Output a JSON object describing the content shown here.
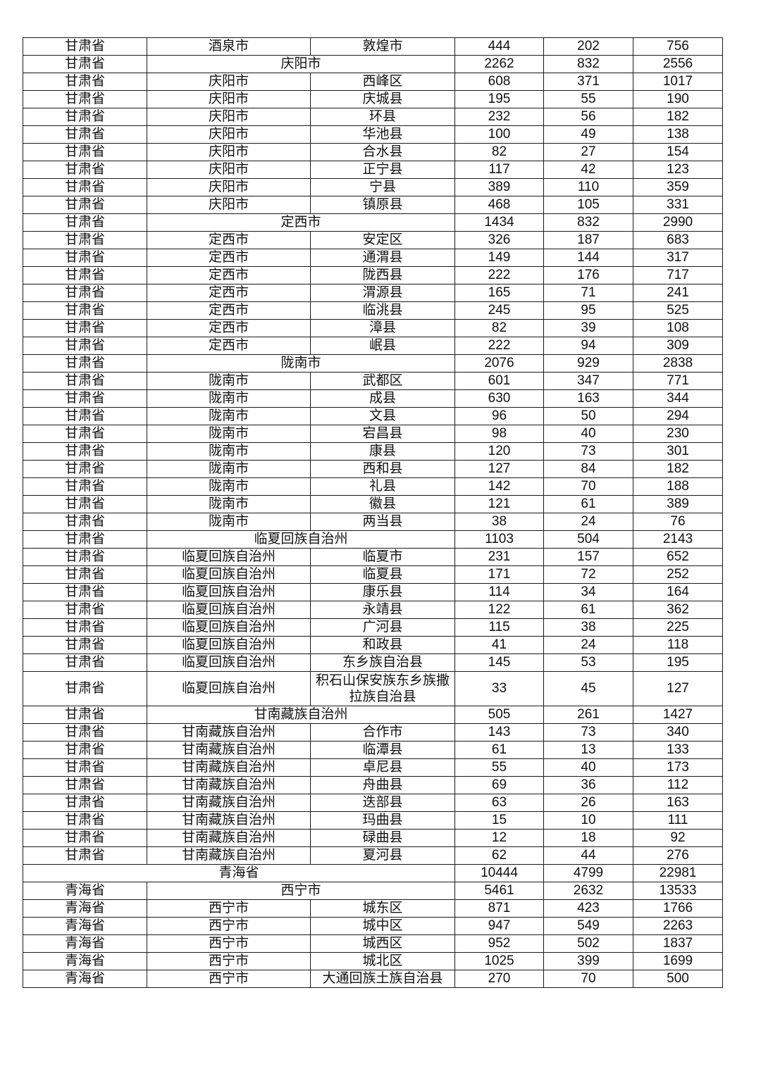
{
  "table": {
    "rows": [
      {
        "type": "county",
        "province": "甘肃省",
        "city": "酒泉市",
        "county": "敦煌市",
        "a": "444",
        "b": "202",
        "c": "756"
      },
      {
        "type": "city",
        "province": "甘肃省",
        "city": "庆阳市",
        "a": "2262",
        "b": "832",
        "c": "2556"
      },
      {
        "type": "county",
        "province": "甘肃省",
        "city": "庆阳市",
        "county": "西峰区",
        "a": "608",
        "b": "371",
        "c": "1017"
      },
      {
        "type": "county",
        "province": "甘肃省",
        "city": "庆阳市",
        "county": "庆城县",
        "a": "195",
        "b": "55",
        "c": "190"
      },
      {
        "type": "county",
        "province": "甘肃省",
        "city": "庆阳市",
        "county": "环县",
        "a": "232",
        "b": "56",
        "c": "182"
      },
      {
        "type": "county",
        "province": "甘肃省",
        "city": "庆阳市",
        "county": "华池县",
        "a": "100",
        "b": "49",
        "c": "138"
      },
      {
        "type": "county",
        "province": "甘肃省",
        "city": "庆阳市",
        "county": "合水县",
        "a": "82",
        "b": "27",
        "c": "154"
      },
      {
        "type": "county",
        "province": "甘肃省",
        "city": "庆阳市",
        "county": "正宁县",
        "a": "117",
        "b": "42",
        "c": "123"
      },
      {
        "type": "county",
        "province": "甘肃省",
        "city": "庆阳市",
        "county": "宁县",
        "a": "389",
        "b": "110",
        "c": "359"
      },
      {
        "type": "county",
        "province": "甘肃省",
        "city": "庆阳市",
        "county": "镇原县",
        "a": "468",
        "b": "105",
        "c": "331"
      },
      {
        "type": "city",
        "province": "甘肃省",
        "city": "定西市",
        "a": "1434",
        "b": "832",
        "c": "2990"
      },
      {
        "type": "county",
        "province": "甘肃省",
        "city": "定西市",
        "county": "安定区",
        "a": "326",
        "b": "187",
        "c": "683"
      },
      {
        "type": "county",
        "province": "甘肃省",
        "city": "定西市",
        "county": "通渭县",
        "a": "149",
        "b": "144",
        "c": "317"
      },
      {
        "type": "county",
        "province": "甘肃省",
        "city": "定西市",
        "county": "陇西县",
        "a": "222",
        "b": "176",
        "c": "717"
      },
      {
        "type": "county",
        "province": "甘肃省",
        "city": "定西市",
        "county": "渭源县",
        "a": "165",
        "b": "71",
        "c": "241"
      },
      {
        "type": "county",
        "province": "甘肃省",
        "city": "定西市",
        "county": "临洮县",
        "a": "245",
        "b": "95",
        "c": "525"
      },
      {
        "type": "county",
        "province": "甘肃省",
        "city": "定西市",
        "county": "漳县",
        "a": "82",
        "b": "39",
        "c": "108"
      },
      {
        "type": "county",
        "province": "甘肃省",
        "city": "定西市",
        "county": "岷县",
        "a": "222",
        "b": "94",
        "c": "309"
      },
      {
        "type": "city",
        "province": "甘肃省",
        "city": "陇南市",
        "a": "2076",
        "b": "929",
        "c": "2838"
      },
      {
        "type": "county",
        "province": "甘肃省",
        "city": "陇南市",
        "county": "武都区",
        "a": "601",
        "b": "347",
        "c": "771"
      },
      {
        "type": "county",
        "province": "甘肃省",
        "city": "陇南市",
        "county": "成县",
        "a": "630",
        "b": "163",
        "c": "344"
      },
      {
        "type": "county",
        "province": "甘肃省",
        "city": "陇南市",
        "county": "文县",
        "a": "96",
        "b": "50",
        "c": "294"
      },
      {
        "type": "county",
        "province": "甘肃省",
        "city": "陇南市",
        "county": "宕昌县",
        "a": "98",
        "b": "40",
        "c": "230"
      },
      {
        "type": "county",
        "province": "甘肃省",
        "city": "陇南市",
        "county": "康县",
        "a": "120",
        "b": "73",
        "c": "301"
      },
      {
        "type": "county",
        "province": "甘肃省",
        "city": "陇南市",
        "county": "西和县",
        "a": "127",
        "b": "84",
        "c": "182"
      },
      {
        "type": "county",
        "province": "甘肃省",
        "city": "陇南市",
        "county": "礼县",
        "a": "142",
        "b": "70",
        "c": "188"
      },
      {
        "type": "county",
        "province": "甘肃省",
        "city": "陇南市",
        "county": "徽县",
        "a": "121",
        "b": "61",
        "c": "389"
      },
      {
        "type": "county",
        "province": "甘肃省",
        "city": "陇南市",
        "county": "两当县",
        "a": "38",
        "b": "24",
        "c": "76"
      },
      {
        "type": "city",
        "province": "甘肃省",
        "city": "临夏回族自治州",
        "a": "1103",
        "b": "504",
        "c": "2143"
      },
      {
        "type": "county",
        "province": "甘肃省",
        "city": "临夏回族自治州",
        "county": "临夏市",
        "a": "231",
        "b": "157",
        "c": "652"
      },
      {
        "type": "county",
        "province": "甘肃省",
        "city": "临夏回族自治州",
        "county": "临夏县",
        "a": "171",
        "b": "72",
        "c": "252"
      },
      {
        "type": "county",
        "province": "甘肃省",
        "city": "临夏回族自治州",
        "county": "康乐县",
        "a": "114",
        "b": "34",
        "c": "164"
      },
      {
        "type": "county",
        "province": "甘肃省",
        "city": "临夏回族自治州",
        "county": "永靖县",
        "a": "122",
        "b": "61",
        "c": "362"
      },
      {
        "type": "county",
        "province": "甘肃省",
        "city": "临夏回族自治州",
        "county": "广河县",
        "a": "115",
        "b": "38",
        "c": "225"
      },
      {
        "type": "county",
        "province": "甘肃省",
        "city": "临夏回族自治州",
        "county": "和政县",
        "a": "41",
        "b": "24",
        "c": "118"
      },
      {
        "type": "county",
        "province": "甘肃省",
        "city": "临夏回族自治州",
        "county": "东乡族自治县",
        "a": "145",
        "b": "53",
        "c": "195"
      },
      {
        "type": "county",
        "double": true,
        "province": "甘肃省",
        "city": "临夏回族自治州",
        "county": "积石山保安族东乡族撒拉族自治县",
        "a": "33",
        "b": "45",
        "c": "127"
      },
      {
        "type": "city",
        "province": "甘肃省",
        "city": "甘南藏族自治州",
        "a": "505",
        "b": "261",
        "c": "1427"
      },
      {
        "type": "county",
        "province": "甘肃省",
        "city": "甘南藏族自治州",
        "county": "合作市",
        "a": "143",
        "b": "73",
        "c": "340"
      },
      {
        "type": "county",
        "province": "甘肃省",
        "city": "甘南藏族自治州",
        "county": "临潭县",
        "a": "61",
        "b": "13",
        "c": "133"
      },
      {
        "type": "county",
        "province": "甘肃省",
        "city": "甘南藏族自治州",
        "county": "卓尼县",
        "a": "55",
        "b": "40",
        "c": "173"
      },
      {
        "type": "county",
        "province": "甘肃省",
        "city": "甘南藏族自治州",
        "county": "舟曲县",
        "a": "69",
        "b": "36",
        "c": "112"
      },
      {
        "type": "county",
        "province": "甘肃省",
        "city": "甘南藏族自治州",
        "county": "迭部县",
        "a": "63",
        "b": "26",
        "c": "163"
      },
      {
        "type": "county",
        "province": "甘肃省",
        "city": "甘南藏族自治州",
        "county": "玛曲县",
        "a": "15",
        "b": "10",
        "c": "111"
      },
      {
        "type": "county",
        "province": "甘肃省",
        "city": "甘南藏族自治州",
        "county": "碌曲县",
        "a": "12",
        "b": "18",
        "c": "92"
      },
      {
        "type": "county",
        "province": "甘肃省",
        "city": "甘南藏族自治州",
        "county": "夏河县",
        "a": "62",
        "b": "44",
        "c": "276"
      },
      {
        "type": "province",
        "province": "青海省",
        "a": "10444",
        "b": "4799",
        "c": "22981"
      },
      {
        "type": "city",
        "province": "青海省",
        "city": "西宁市",
        "a": "5461",
        "b": "2632",
        "c": "13533"
      },
      {
        "type": "county",
        "province": "青海省",
        "city": "西宁市",
        "county": "城东区",
        "a": "871",
        "b": "423",
        "c": "1766"
      },
      {
        "type": "county",
        "province": "青海省",
        "city": "西宁市",
        "county": "城中区",
        "a": "947",
        "b": "549",
        "c": "2263"
      },
      {
        "type": "county",
        "province": "青海省",
        "city": "西宁市",
        "county": "城西区",
        "a": "952",
        "b": "502",
        "c": "1837"
      },
      {
        "type": "county",
        "province": "青海省",
        "city": "西宁市",
        "county": "城北区",
        "a": "1025",
        "b": "399",
        "c": "1699"
      },
      {
        "type": "county",
        "province": "青海省",
        "city": "西宁市",
        "county": "大通回族土族自治县",
        "a": "270",
        "b": "70",
        "c": "500"
      }
    ]
  }
}
